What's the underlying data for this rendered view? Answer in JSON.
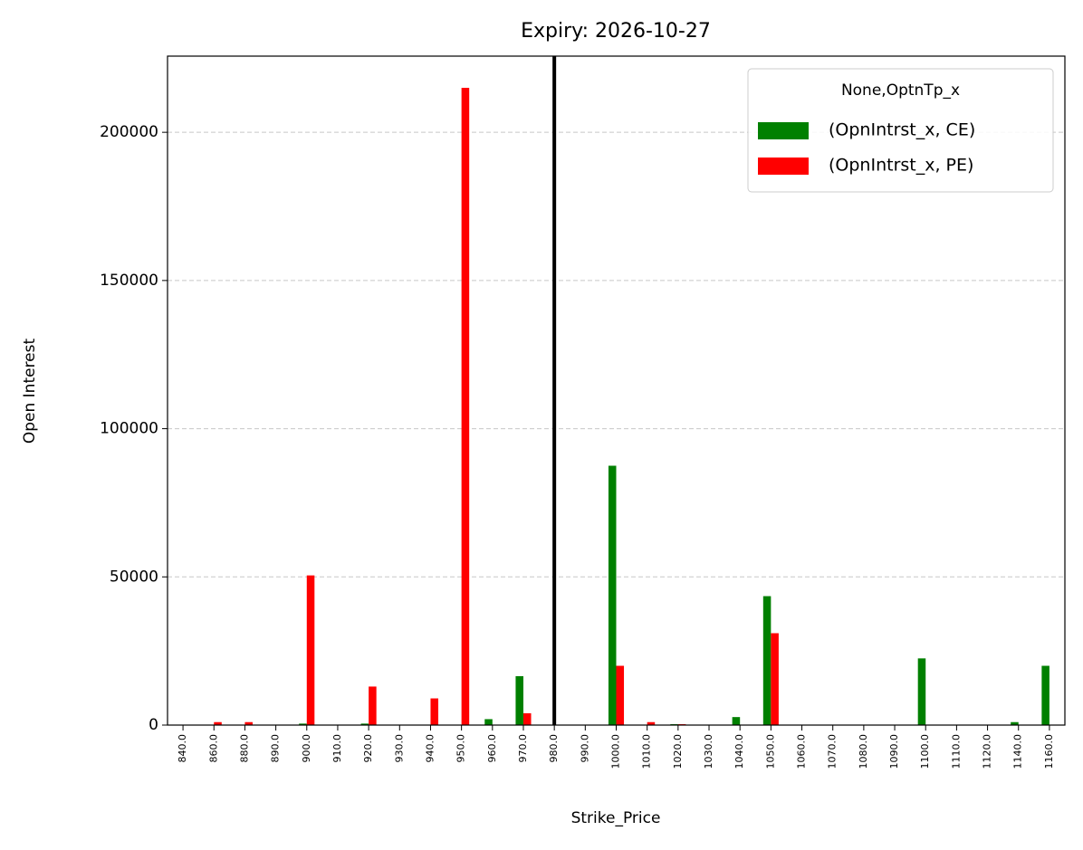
{
  "chart_data": {
    "type": "bar",
    "title": "Expiry: 2026-10-27",
    "x_label": "Strike_Price",
    "y_label": "Open Interest",
    "categories": [
      "840.0",
      "860.0",
      "880.0",
      "890.0",
      "900.0",
      "910.0",
      "920.0",
      "930.0",
      "940.0",
      "950.0",
      "960.0",
      "970.0",
      "980.0",
      "990.0",
      "1000.0",
      "1010.0",
      "1020.0",
      "1030.0",
      "1040.0",
      "1050.0",
      "1060.0",
      "1070.0",
      "1080.0",
      "1090.0",
      "1100.0",
      "1110.0",
      "1120.0",
      "1140.0",
      "1160.0"
    ],
    "series": [
      {
        "name": "(OpnIntrst_x, CE)",
        "color": "#008000",
        "values": [
          0,
          0,
          0,
          0,
          500,
          0,
          500,
          0,
          0,
          0,
          2000,
          16500,
          0,
          0,
          87500,
          0,
          300,
          0,
          2700,
          43500,
          0,
          0,
          0,
          0,
          22500,
          0,
          0,
          1000,
          20000
        ]
      },
      {
        "name": "(OpnIntrst_x, PE)",
        "color": "#ff0000",
        "values": [
          0,
          1000,
          1000,
          0,
          50500,
          0,
          13000,
          0,
          9000,
          215000,
          0,
          4000,
          0,
          0,
          20000,
          1000,
          300,
          0,
          0,
          31000,
          0,
          0,
          0,
          0,
          0,
          0,
          0,
          0,
          0
        ]
      }
    ],
    "legend_title": "None,OptnTp_x",
    "legend": "upper right",
    "vline": "980.0",
    "vline_color": "#000000",
    "ylim": [
      0,
      225700
    ],
    "yticks": [
      0,
      50000,
      100000,
      150000,
      200000
    ],
    "grid": "y"
  }
}
